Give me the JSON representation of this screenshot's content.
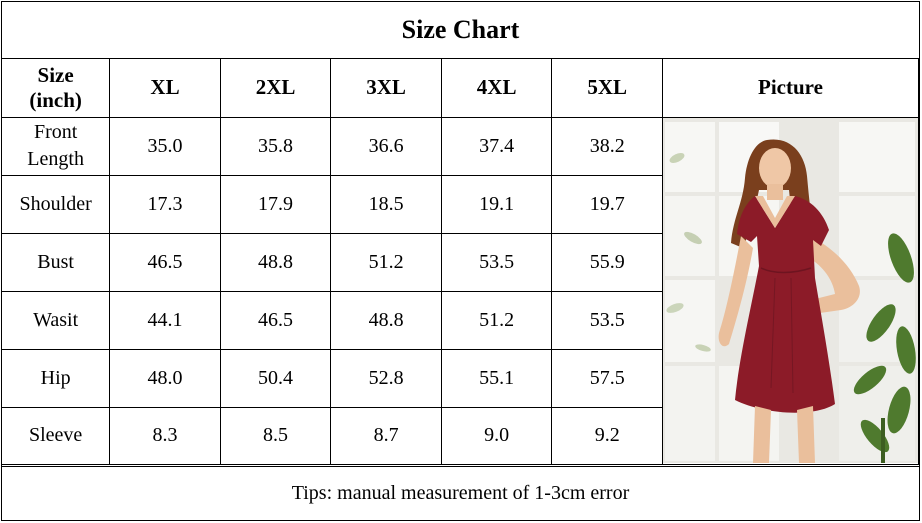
{
  "title": "Size Chart",
  "header": {
    "size_label_line1": "Size",
    "size_label_line2": "(inch)",
    "sizes": [
      "XL",
      "2XL",
      "3XL",
      "4XL",
      "5XL"
    ],
    "picture_label": "Picture"
  },
  "rows": [
    {
      "label_line1": "Front",
      "label_line2": "Length",
      "values": [
        "35.0",
        "35.8",
        "36.6",
        "37.4",
        "38.2"
      ]
    },
    {
      "label": "Shoulder",
      "values": [
        "17.3",
        "17.9",
        "18.5",
        "19.1",
        "19.7"
      ]
    },
    {
      "label": "Bust",
      "values": [
        "46.5",
        "48.8",
        "51.2",
        "53.5",
        "55.9"
      ]
    },
    {
      "label": "Wasit",
      "values": [
        "44.1",
        "46.5",
        "48.8",
        "51.2",
        "53.5"
      ]
    },
    {
      "label": "Hip",
      "values": [
        "48.0",
        "50.4",
        "52.8",
        "55.1",
        "57.5"
      ]
    },
    {
      "label": "Sleeve",
      "values": [
        "8.3",
        "8.5",
        "8.7",
        "9.0",
        "9.2"
      ]
    }
  ],
  "footer": "Tips: manual measurement of 1-3cm error",
  "colors": {
    "dress": "#8c1b28",
    "border": "#000000"
  }
}
